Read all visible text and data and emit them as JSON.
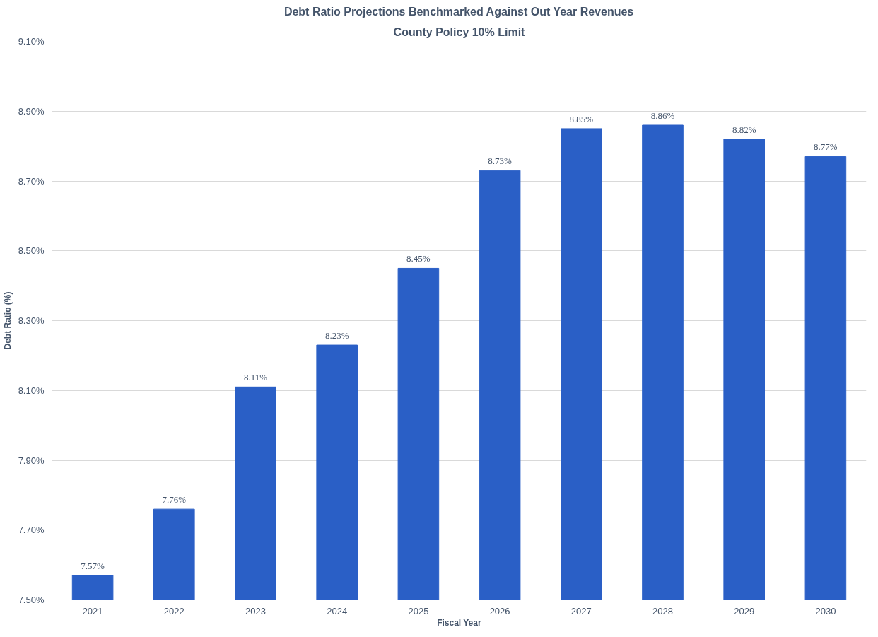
{
  "chart_data": {
    "type": "bar",
    "title": "Debt Ratio Projections Benchmarked Against Out Year Revenues",
    "subtitle": "County Policy 10% Limit",
    "xlabel": "Fiscal Year",
    "ylabel": "Debt Ratio (%)",
    "categories": [
      "2021",
      "2022",
      "2023",
      "2024",
      "2025",
      "2026",
      "2027",
      "2028",
      "2029",
      "2030"
    ],
    "values": [
      7.57,
      7.76,
      8.11,
      8.23,
      8.45,
      8.73,
      8.85,
      8.86,
      8.82,
      8.77
    ],
    "value_labels": [
      "7.57%",
      "7.76%",
      "8.11%",
      "8.23%",
      "8.45%",
      "8.73%",
      "8.85%",
      "8.86%",
      "8.82%",
      "8.77%"
    ],
    "color": "#2a5fc6",
    "ylim": [
      7.5,
      9.1
    ],
    "yticks": [
      {
        "value": 7.5,
        "label": "7.50%"
      },
      {
        "value": 7.7,
        "label": "7.70%"
      },
      {
        "value": 7.9,
        "label": "7.90%"
      },
      {
        "value": 8.1,
        "label": "8.10%"
      },
      {
        "value": 8.3,
        "label": "8.30%"
      },
      {
        "value": 8.5,
        "label": "8.50%"
      },
      {
        "value": 8.7,
        "label": "8.70%"
      },
      {
        "value": 8.9,
        "label": "8.90%"
      },
      {
        "value": 9.1,
        "label": "9.10%"
      }
    ],
    "grid": "y"
  }
}
